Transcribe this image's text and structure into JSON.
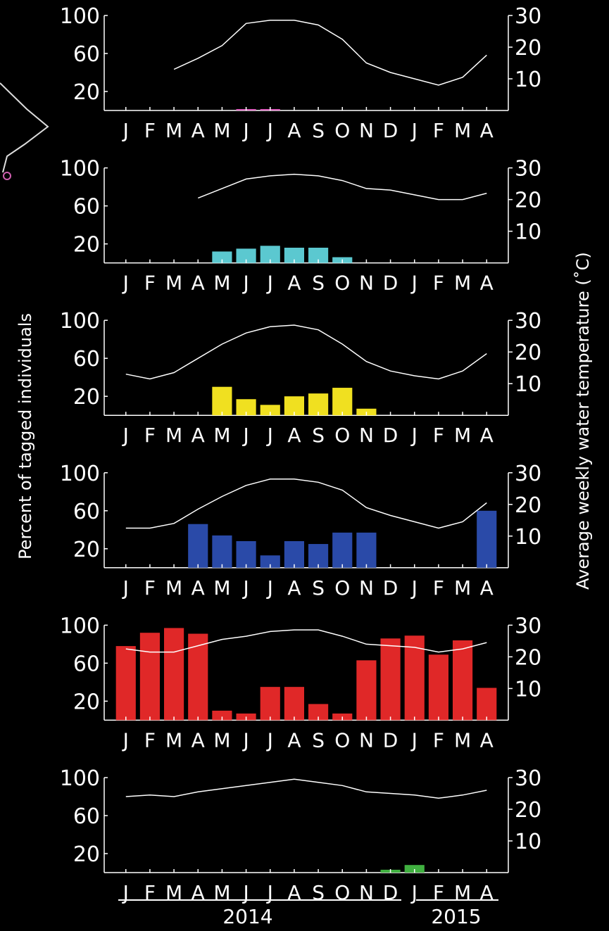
{
  "figure": {
    "left_axis_label": "Percent of tagged individuals",
    "right_axis_label": "Average weekly water temperature (˚C)",
    "years": [
      "2014",
      "2015"
    ]
  },
  "months": [
    "J",
    "F",
    "M",
    "A",
    "M",
    "J",
    "J",
    "A",
    "S",
    "O",
    "N",
    "D",
    "J",
    "F",
    "M",
    "A"
  ],
  "left_ticks": [
    100,
    60,
    20
  ],
  "right_ticks": [
    30,
    20,
    10
  ],
  "chart_data": [
    {
      "type": "bar",
      "panel": 1,
      "bar_color": "#e060c0",
      "categories": [
        "J",
        "F",
        "M",
        "A",
        "M",
        "J",
        "J",
        "A",
        "S",
        "O",
        "N",
        "D",
        "J",
        "F",
        "M",
        "A"
      ],
      "values": [
        null,
        null,
        null,
        null,
        null,
        1.5,
        1.5,
        null,
        null,
        null,
        null,
        null,
        null,
        null,
        null,
        null
      ],
      "temperature": [
        null,
        null,
        13,
        16.5,
        20.5,
        27.5,
        28.5,
        28.5,
        27,
        22.5,
        15,
        12,
        10,
        8,
        10.5,
        17.5
      ],
      "ylim": [
        0,
        100
      ],
      "y2lim": [
        0,
        30
      ]
    },
    {
      "type": "bar",
      "panel": 2,
      "bar_color": "#5bc8d0",
      "categories": [
        "J",
        "F",
        "M",
        "A",
        "M",
        "J",
        "J",
        "A",
        "S",
        "O",
        "N",
        "D",
        "J",
        "F",
        "M",
        "A"
      ],
      "values": [
        null,
        null,
        null,
        null,
        12,
        15,
        18,
        16,
        16,
        6,
        null,
        null,
        null,
        null,
        null,
        null
      ],
      "temperature": [
        null,
        null,
        null,
        20.5,
        23.5,
        26.5,
        27.5,
        28,
        27.5,
        26,
        23.5,
        23,
        21.5,
        20,
        20,
        22
      ],
      "ylim": [
        0,
        100
      ],
      "y2lim": [
        0,
        30
      ]
    },
    {
      "type": "bar",
      "panel": 3,
      "bar_color": "#f0e020",
      "categories": [
        "J",
        "F",
        "M",
        "A",
        "M",
        "J",
        "J",
        "A",
        "S",
        "O",
        "N",
        "D",
        "J",
        "F",
        "M",
        "A"
      ],
      "values": [
        null,
        null,
        null,
        null,
        30,
        17,
        11,
        20,
        23,
        29,
        7,
        null,
        null,
        null,
        null,
        null
      ],
      "temperature": [
        13,
        11.5,
        13.5,
        18,
        22.5,
        26,
        28,
        28.5,
        27,
        22.5,
        17,
        14,
        12.5,
        11.5,
        14,
        19.5
      ],
      "ylim": [
        0,
        100
      ],
      "y2lim": [
        0,
        30
      ]
    },
    {
      "type": "bar",
      "panel": 4,
      "bar_color": "#2a4aa8",
      "categories": [
        "J",
        "F",
        "M",
        "A",
        "M",
        "J",
        "J",
        "A",
        "S",
        "O",
        "N",
        "D",
        "J",
        "F",
        "M",
        "A"
      ],
      "values": [
        null,
        null,
        null,
        46,
        34,
        28,
        13,
        28,
        25,
        37,
        37,
        null,
        null,
        null,
        null,
        60
      ],
      "temperature": [
        12.5,
        12.5,
        14,
        18.5,
        22.5,
        26,
        28,
        28,
        27,
        24.5,
        19,
        16.5,
        14.5,
        12.5,
        14.5,
        20.5
      ],
      "ylim": [
        0,
        100
      ],
      "y2lim": [
        0,
        30
      ]
    },
    {
      "type": "bar",
      "panel": 5,
      "bar_color": "#e02828",
      "categories": [
        "J",
        "F",
        "M",
        "A",
        "M",
        "J",
        "J",
        "A",
        "S",
        "O",
        "N",
        "D",
        "J",
        "F",
        "M",
        "A"
      ],
      "values": [
        78,
        92,
        97,
        91,
        10,
        7,
        35,
        35,
        17,
        7,
        63,
        86,
        89,
        69,
        84,
        34
      ],
      "temperature": [
        22.5,
        21.5,
        21.5,
        23.5,
        25.5,
        26.5,
        28,
        28.5,
        28.5,
        26.5,
        24,
        23.5,
        23,
        21.5,
        22.5,
        24.5
      ],
      "ylim": [
        0,
        100
      ],
      "y2lim": [
        0,
        30
      ]
    },
    {
      "type": "bar",
      "panel": 6,
      "bar_color": "#40b040",
      "categories": [
        "J",
        "F",
        "M",
        "A",
        "M",
        "J",
        "J",
        "A",
        "S",
        "O",
        "N",
        "D",
        "J",
        "F",
        "M",
        "A"
      ],
      "values": [
        null,
        null,
        null,
        null,
        null,
        null,
        null,
        null,
        null,
        null,
        null,
        3,
        8,
        null,
        null,
        null
      ],
      "temperature": [
        24,
        24.5,
        24,
        25.5,
        26.5,
        27.5,
        28.5,
        29.5,
        28.5,
        27.5,
        25.5,
        25,
        24.5,
        23.5,
        24.5,
        26
      ],
      "ylim": [
        0,
        100
      ],
      "y2lim": [
        0,
        30
      ]
    }
  ]
}
